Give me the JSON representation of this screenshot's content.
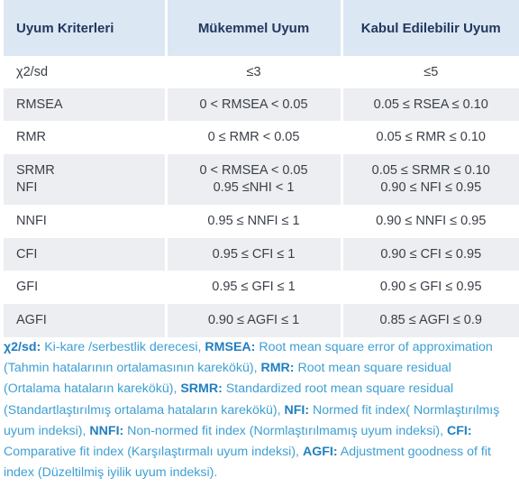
{
  "table": {
    "headers": [
      "Uyum Kriterleri",
      "Mükemmel Uyum",
      "Kabul Edilebilir Uyum"
    ],
    "rows": [
      {
        "criterion": [
          "χ2/sd"
        ],
        "excellent": [
          "≤3"
        ],
        "acceptable": [
          "≤5"
        ]
      },
      {
        "criterion": [
          "RMSEA"
        ],
        "excellent": [
          "0 < RMSEA < 0.05"
        ],
        "acceptable": [
          "0.05 ≤ RSEA ≤ 0.10"
        ]
      },
      {
        "criterion": [
          "RMR"
        ],
        "excellent": [
          "0 ≤ RMR < 0.05"
        ],
        "acceptable": [
          "0.05 ≤ RMR ≤ 0.10"
        ]
      },
      {
        "criterion": [
          "SRMR",
          "NFI"
        ],
        "excellent": [
          "0 < RMSEA < 0.05",
          "0.95 ≤NHI < 1"
        ],
        "acceptable": [
          "0.05 ≤ SRMR ≤ 0.10",
          "0.90 ≤ NFI ≤ 0.95"
        ]
      },
      {
        "criterion": [
          "NNFI"
        ],
        "excellent": [
          "0.95 ≤ NNFI ≤ 1"
        ],
        "acceptable": [
          "0.90 ≤ NNFI ≤ 0.95"
        ]
      },
      {
        "criterion": [
          "CFI"
        ],
        "excellent": [
          "0.95 ≤ CFI ≤ 1"
        ],
        "acceptable": [
          "0.90 ≤ CFI ≤ 0.95"
        ]
      },
      {
        "criterion": [
          "GFI"
        ],
        "excellent": [
          "0.95 ≤ GFI ≤ 1"
        ],
        "acceptable": [
          "0.90 ≤ GFI ≤ 0.95"
        ]
      },
      {
        "criterion": [
          "AGFI"
        ],
        "excellent": [
          "0.90 ≤ AGFI ≤ 1"
        ],
        "acceptable": [
          "0.85 ≤ AGFI ≤ 0.9"
        ]
      }
    ]
  },
  "footnote": [
    {
      "term": "χ2/sd:",
      "desc": " Ki-kare /serbestlik derecesi, "
    },
    {
      "term": "RMSEA:",
      "desc": " Root mean square error of approximation (Tahmin hatalarının ortalamasının karekökü), "
    },
    {
      "term": "RMR:",
      "desc": " Root mean square residual (Ortalama hataların karekökü), "
    },
    {
      "term": "SRMR:",
      "desc": " Standardized root mean square residual (Standartlaştırılmış ortalama hataların karekökü), "
    },
    {
      "term": "NFI:",
      "desc": " Normed fit index( Normlaştırılmış uyum indeksi), "
    },
    {
      "term": "NNFI:",
      "desc": " Non-normed fit index (Normlaştırılmamış uyum indeksi), "
    },
    {
      "term": "CFI:",
      "desc": " Comparative fit index (Karşılaştırmalı uyum indeksi), "
    },
    {
      "term": "AGFI:",
      "desc": " Adjustment goodness of fit index (Düzeltilmiş iyilik uyum indeksi)."
    }
  ],
  "colors": {
    "header_bg": "#dbe7f3",
    "header_text": "#23385f",
    "row_alt_bg": "#eceef1",
    "note_term": "#1f7fc1",
    "note_text": "#3d9fd4"
  }
}
